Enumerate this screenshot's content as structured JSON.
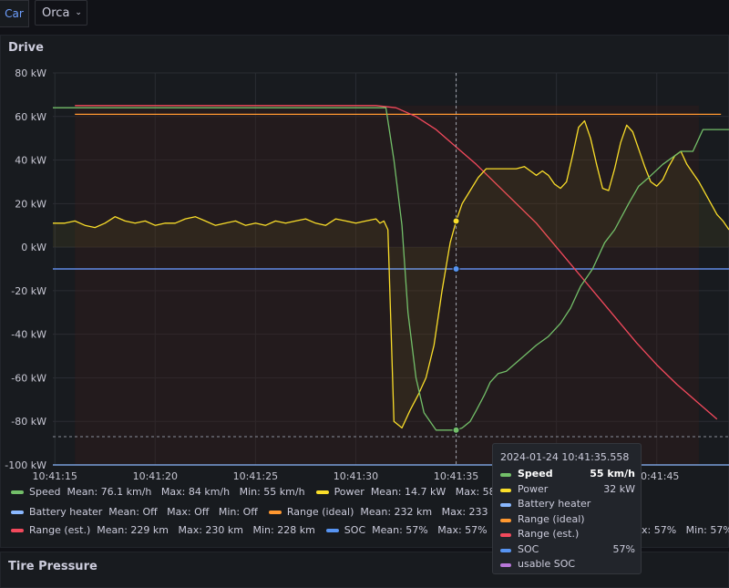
{
  "topbar": {
    "tag": "Car",
    "variable": "Orca"
  },
  "panel": {
    "title": "Drive"
  },
  "panel2": {
    "title": "Tire Pressure"
  },
  "colors": {
    "speed": "#73bf69",
    "power": "#fade2a",
    "battery_heater": "#8ab8ff",
    "range_ideal": "#ff9830",
    "range_est": "#f2495c",
    "soc": "#5794f2",
    "usable_soc": "#b877d9"
  },
  "chart_data": {
    "type": "line",
    "title": "Drive",
    "ylim": [
      -100,
      80
    ],
    "y_ticks": [
      "80 kW",
      "60 kW",
      "40 kW",
      "20 kW",
      "0 kW",
      "-20 kW",
      "-40 kW",
      "-60 kW",
      "-80 kW",
      "-100 kW"
    ],
    "y_tick_values": [
      80,
      60,
      40,
      20,
      0,
      -20,
      -40,
      -60,
      -80,
      -100
    ],
    "x_ticks": [
      "10:41:15",
      "10:41:20",
      "10:41:25",
      "10:41:30",
      "10:41:35",
      "10:41:40",
      "10:41:45"
    ],
    "x_tick_values": [
      15,
      20,
      25,
      30,
      35,
      40,
      45
    ],
    "xlim": [
      14.9,
      48.6
    ],
    "grid": true,
    "series": [
      {
        "name": "Speed",
        "color": "#73bf69",
        "x": [
          14.9,
          16.0,
          31.5,
          31.9,
          32.3,
          32.6,
          33.0,
          33.4,
          34.0,
          34.7,
          35.0,
          35.3,
          35.7,
          36.0,
          36.4,
          36.7,
          37.1,
          37.5,
          38.0,
          38.5,
          39.0,
          39.6,
          40.2,
          40.7,
          41.2,
          41.8,
          42.4,
          42.9,
          43.6,
          44.1,
          44.6,
          45.3,
          46.2,
          46.8,
          47.3,
          48.6
        ],
        "y": [
          64,
          64,
          64,
          40,
          10,
          -30,
          -60,
          -76,
          -84,
          -84,
          -84,
          -83,
          -80,
          -75,
          -68,
          -62,
          -58,
          -57,
          -53,
          -49,
          -45,
          -41,
          -35,
          -28,
          -18,
          -10,
          2,
          8,
          20,
          28,
          32,
          38,
          44,
          44,
          54,
          54
        ],
        "legend": {
          "mean": "76.1 km/h",
          "max": "84 km/h",
          "min": "55 km/h"
        }
      },
      {
        "name": "Power",
        "color": "#fade2a",
        "x": [
          14.9,
          15.5,
          16.0,
          16.5,
          17.0,
          17.5,
          18.0,
          18.5,
          19.0,
          19.5,
          20.0,
          20.5,
          21.0,
          21.5,
          22.0,
          22.5,
          23.0,
          23.5,
          24.0,
          24.5,
          25.0,
          25.5,
          26.0,
          26.5,
          27.0,
          27.5,
          28.0,
          28.5,
          29.0,
          29.5,
          30.0,
          30.5,
          31.0,
          31.2,
          31.4,
          31.6,
          31.9,
          32.3,
          32.7,
          33.1,
          33.5,
          33.9,
          34.3,
          34.7,
          35.0,
          35.3,
          35.7,
          36.1,
          36.5,
          37.0,
          37.5,
          38.0,
          38.4,
          38.7,
          39.0,
          39.3,
          39.6,
          39.9,
          40.2,
          40.5,
          40.8,
          41.1,
          41.4,
          41.7,
          42.0,
          42.3,
          42.6,
          42.9,
          43.2,
          43.5,
          43.8,
          44.1,
          44.4,
          44.7,
          45.0,
          45.3,
          45.6,
          45.9,
          46.2,
          46.5,
          46.8,
          47.1,
          47.4,
          47.7,
          48.0,
          48.3,
          48.6
        ],
        "y": [
          11,
          11,
          12,
          10,
          9,
          11,
          14,
          12,
          11,
          12,
          10,
          11,
          11,
          13,
          14,
          12,
          10,
          11,
          12,
          10,
          11,
          10,
          12,
          11,
          12,
          13,
          11,
          10,
          13,
          12,
          11,
          12,
          13,
          11,
          12,
          8,
          -80,
          -83,
          -75,
          -68,
          -60,
          -45,
          -20,
          2,
          12,
          20,
          26,
          32,
          36,
          36,
          36,
          36,
          37,
          35,
          33,
          35,
          33,
          29,
          27,
          30,
          42,
          55,
          58,
          50,
          38,
          27,
          26,
          36,
          48,
          56,
          53,
          45,
          37,
          30,
          28,
          31,
          37,
          42,
          44,
          38,
          34,
          30,
          25,
          20,
          15,
          12,
          8
        ],
        "legend": {
          "mean": "14.7 kW",
          "max": "58 kW",
          "min": "..."
        }
      },
      {
        "name": "Battery heater",
        "color": "#8ab8ff",
        "x": [
          14.9,
          48.6
        ],
        "y": [
          -100,
          -100
        ],
        "legend": {
          "mean": "Off",
          "max": "Off",
          "min": "Off"
        }
      },
      {
        "name": "Range (ideal)",
        "color": "#ff9830",
        "x": [
          16.0,
          48.2
        ],
        "y": [
          61,
          61
        ],
        "legend": {
          "mean": "232 km",
          "max": "233 km",
          "min": "..."
        }
      },
      {
        "name": "Range (est.)",
        "color": "#f2495c",
        "x": [
          16.0,
          31.0,
          32.0,
          33.0,
          34.0,
          35.0,
          36.0,
          37.0,
          38.0,
          39.0,
          40.0,
          41.0,
          42.0,
          43.0,
          44.0,
          45.0,
          46.0,
          47.0,
          48.0
        ],
        "y": [
          65,
          65,
          64,
          60,
          54,
          46,
          38,
          29,
          20,
          11,
          0,
          -11,
          -22,
          -33,
          -44,
          -54,
          -63,
          -71,
          -79
        ],
        "legend": {
          "mean": "229 km",
          "max": "230 km",
          "min": "228 km"
        }
      },
      {
        "name": "SOC",
        "color": "#5794f2",
        "x": [
          14.9,
          48.6
        ],
        "y": [
          -10,
          -10
        ],
        "legend": {
          "mean": "57%",
          "max": "57%",
          "min": "..."
        }
      },
      {
        "name": "usable SOC",
        "color": "#b877d9",
        "x": [
          14.9,
          48.6
        ],
        "y": [
          -10,
          -10
        ],
        "legend": {
          "mean": "...",
          "max": "57%",
          "min": "57%"
        }
      }
    ],
    "crosshair_x": 35.0,
    "threshold_y": -87
  },
  "legend": {
    "row1": [
      {
        "color_key": "speed",
        "text": "Speed  Mean: 76.1 km/h   Max: 84 km/h   Min: 55 km/h"
      },
      {
        "color_key": "power",
        "text": "Power  Mean: 14.7 kW   Max: 58 kW   Min:"
      }
    ],
    "row2": [
      {
        "color_key": "battery_heater",
        "text": "Battery heater  Mean: Off   Max: Off   Min: Off"
      },
      {
        "color_key": "range_ideal",
        "text": "Range (ideal)  Mean: 232 km   Max: 233 km   Min: 2"
      }
    ],
    "row3": [
      {
        "color_key": "range_est",
        "text": "Range (est.)  Mean: 229 km   Max: 230 km   Min: 228 km"
      },
      {
        "color_key": "soc",
        "text": "SOC  Mean: 57%   Max: 57%   Min: 57"
      }
    ],
    "row3_tail": "x: 57%   Min: 57%"
  },
  "tooltip": {
    "time": "2024-01-24 10:41:35.558",
    "rows": [
      {
        "name": "Speed",
        "value": "55 km/h",
        "color_key": "speed",
        "bold": true
      },
      {
        "name": "Power",
        "value": "32 kW",
        "color_key": "power",
        "bold": false
      },
      {
        "name": "Battery heater",
        "value": "",
        "color_key": "battery_heater",
        "bold": false
      },
      {
        "name": "Range (ideal)",
        "value": "",
        "color_key": "range_ideal",
        "bold": false
      },
      {
        "name": "Range (est.)",
        "value": "",
        "color_key": "range_est",
        "bold": false
      },
      {
        "name": "SOC",
        "value": "57%",
        "color_key": "soc",
        "bold": false
      },
      {
        "name": "usable SOC",
        "value": "",
        "color_key": "usable_soc",
        "bold": false
      }
    ]
  }
}
